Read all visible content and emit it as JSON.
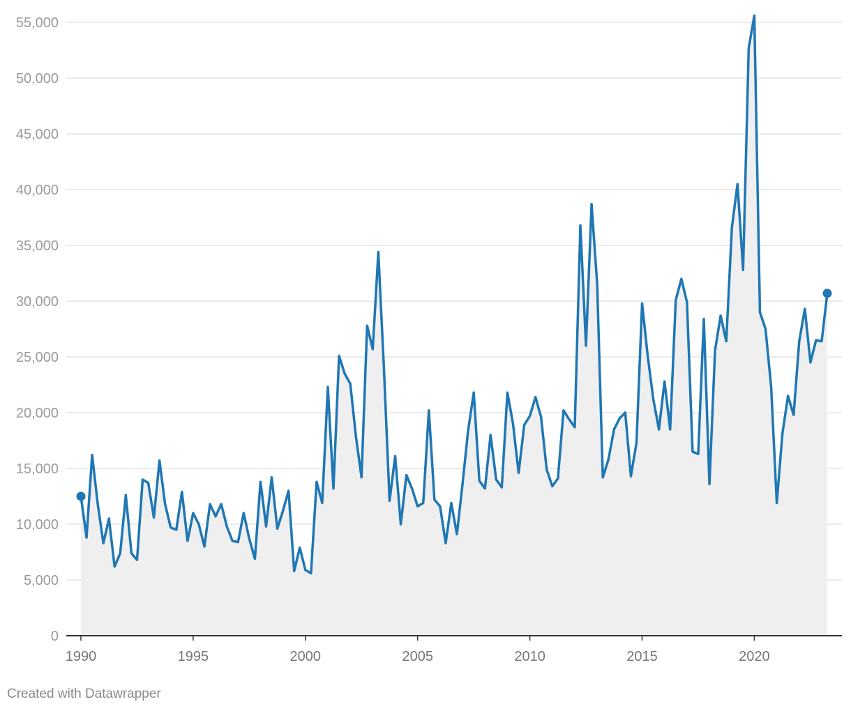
{
  "footer": {
    "credit": "Created with Datawrapper"
  },
  "colors": {
    "line": "#1f77b4",
    "area": "#efefef",
    "grid": "#e3e3e3",
    "axis": "#333333"
  },
  "chart_data": {
    "type": "area",
    "title": "",
    "xlabel": "",
    "ylabel": "",
    "xlim": [
      1990,
      2023.25
    ],
    "ylim": [
      0,
      55000
    ],
    "grid": true,
    "y_ticks": [
      0,
      5000,
      10000,
      15000,
      20000,
      25000,
      30000,
      35000,
      40000,
      45000,
      50000,
      55000
    ],
    "y_tick_labels": [
      "0",
      "5,000",
      "10,000",
      "15,000",
      "20,000",
      "25,000",
      "30,000",
      "35,000",
      "40,000",
      "45,000",
      "50,000",
      "55,000"
    ],
    "x_ticks": [
      1990,
      1995,
      2000,
      2005,
      2010,
      2015,
      2020
    ],
    "x_tick_labels": [
      "1990",
      "1995",
      "2000",
      "2005",
      "2010",
      "2015",
      "2020"
    ],
    "markers": "first and last point",
    "x": [
      1990.0,
      1990.25,
      1990.5,
      1990.75,
      1991.0,
      1991.25,
      1991.5,
      1991.75,
      1992.0,
      1992.25,
      1992.5,
      1992.75,
      1993.0,
      1993.25,
      1993.5,
      1993.75,
      1994.0,
      1994.25,
      1994.5,
      1994.75,
      1995.0,
      1995.25,
      1995.5,
      1995.75,
      1996.0,
      1996.25,
      1996.5,
      1996.75,
      1997.0,
      1997.25,
      1997.5,
      1997.75,
      1998.0,
      1998.25,
      1998.5,
      1998.75,
      1999.0,
      1999.25,
      1999.5,
      1999.75,
      2000.0,
      2000.25,
      2000.5,
      2000.75,
      2001.0,
      2001.25,
      2001.5,
      2001.75,
      2002.0,
      2002.25,
      2002.5,
      2002.75,
      2003.0,
      2003.25,
      2003.5,
      2003.75,
      2004.0,
      2004.25,
      2004.5,
      2004.75,
      2005.0,
      2005.25,
      2005.5,
      2005.75,
      2006.0,
      2006.25,
      2006.5,
      2006.75,
      2007.0,
      2007.25,
      2007.5,
      2007.75,
      2008.0,
      2008.25,
      2008.5,
      2008.75,
      2009.0,
      2009.25,
      2009.5,
      2009.75,
      2010.0,
      2010.25,
      2010.5,
      2010.75,
      2011.0,
      2011.25,
      2011.5,
      2011.75,
      2012.0,
      2012.25,
      2012.5,
      2012.75,
      2013.0,
      2013.25,
      2013.5,
      2013.75,
      2014.0,
      2014.25,
      2014.5,
      2014.75,
      2015.0,
      2015.25,
      2015.5,
      2015.75,
      2016.0,
      2016.25,
      2016.5,
      2016.75,
      2017.0,
      2017.25,
      2017.5,
      2017.75,
      2018.0,
      2018.25,
      2018.5,
      2018.75,
      2019.0,
      2019.25,
      2019.5,
      2019.75,
      2020.0,
      2020.25,
      2020.5,
      2020.75,
      2021.0,
      2021.25,
      2021.5,
      2021.75,
      2022.0,
      2022.25,
      2022.5,
      2022.75,
      2023.0,
      2023.25
    ],
    "series": [
      {
        "values": [
          12500,
          8800,
          16200,
          11800,
          8300,
          10500,
          6200,
          7400,
          12600,
          7400,
          6800,
          14000,
          13700,
          10600,
          15700,
          11800,
          9700,
          9500,
          12900,
          8500,
          11000,
          10000,
          8000,
          11800,
          10700,
          11800,
          9800,
          8500,
          8400,
          11000,
          8700,
          6900,
          13800,
          9800,
          14200,
          9600,
          11200,
          13000,
          5800,
          7900,
          5900,
          5600,
          13800,
          11900,
          22300,
          13200,
          25100,
          23500,
          22600,
          17900,
          14200,
          27800,
          25700,
          34400,
          23900,
          12100,
          16100,
          10000,
          14400,
          13200,
          11600,
          11900,
          20200,
          12200,
          11600,
          8300,
          11900,
          9100,
          13600,
          18400,
          21800,
          13900,
          13200,
          18000,
          14000,
          13300,
          21800,
          19000,
          14600,
          18900,
          19700,
          21400,
          19600,
          14900,
          13400,
          14100,
          20200,
          19400,
          18700,
          36800,
          26000,
          38700,
          31500,
          14200,
          15800,
          18500,
          19500,
          20000,
          14300,
          17300,
          29800,
          25100,
          21200,
          18500,
          22800,
          18500,
          30100,
          32000,
          29900,
          16500,
          16300,
          28400,
          13600,
          25600,
          28700,
          26400,
          36600,
          40500,
          32800,
          52700,
          55600,
          29000,
          27500,
          22300,
          11900,
          18100,
          21500,
          19800,
          26400,
          29300,
          24500,
          26500,
          26400,
          30700
        ]
      }
    ]
  }
}
